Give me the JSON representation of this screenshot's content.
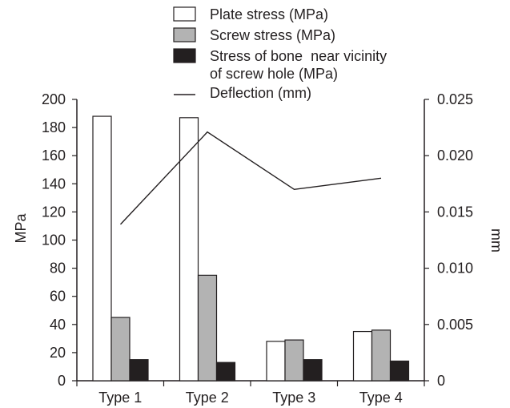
{
  "chart_data": {
    "type": "bar",
    "categories": [
      "Type 1",
      "Type 2",
      "Type 3",
      "Type 4"
    ],
    "series": [
      {
        "name": "Plate stress (MPa)",
        "kind": "bar",
        "axis": "left",
        "color": "#ffffff",
        "values": [
          188,
          187,
          28,
          35
        ]
      },
      {
        "name": "Screw stress (MPa)",
        "kind": "bar",
        "axis": "left",
        "color": "#b3b3b3",
        "values": [
          45,
          75,
          29,
          36
        ]
      },
      {
        "name": "Stress of bone  near vicinity of screw hole (MPa)",
        "kind": "bar",
        "axis": "left",
        "color": "#231f20",
        "values": [
          15,
          13,
          15,
          14
        ]
      },
      {
        "name": "Deflection (mm)",
        "kind": "line",
        "axis": "right",
        "color": "#231f20",
        "values": [
          0.0139,
          0.0221,
          0.017,
          0.018
        ]
      }
    ],
    "legend_lines": [
      "Plate stress (MPa)",
      "Screw stress (MPa)",
      "Stress of bone  near vicinity",
      "of screw hole (MPa)",
      "Deflection (mm)"
    ],
    "ylabel": "MPa",
    "y2label": "mm",
    "ylim": [
      0,
      200
    ],
    "y2lim": [
      0,
      0.025
    ],
    "yticks": [
      "0",
      "20",
      "40",
      "60",
      "80",
      "100",
      "120",
      "140",
      "160",
      "180",
      "200"
    ],
    "y2ticks": [
      "0",
      "0.005",
      "0.010",
      "0.015",
      "0.020",
      "0.025"
    ],
    "grid": false,
    "legend_position": "top"
  }
}
